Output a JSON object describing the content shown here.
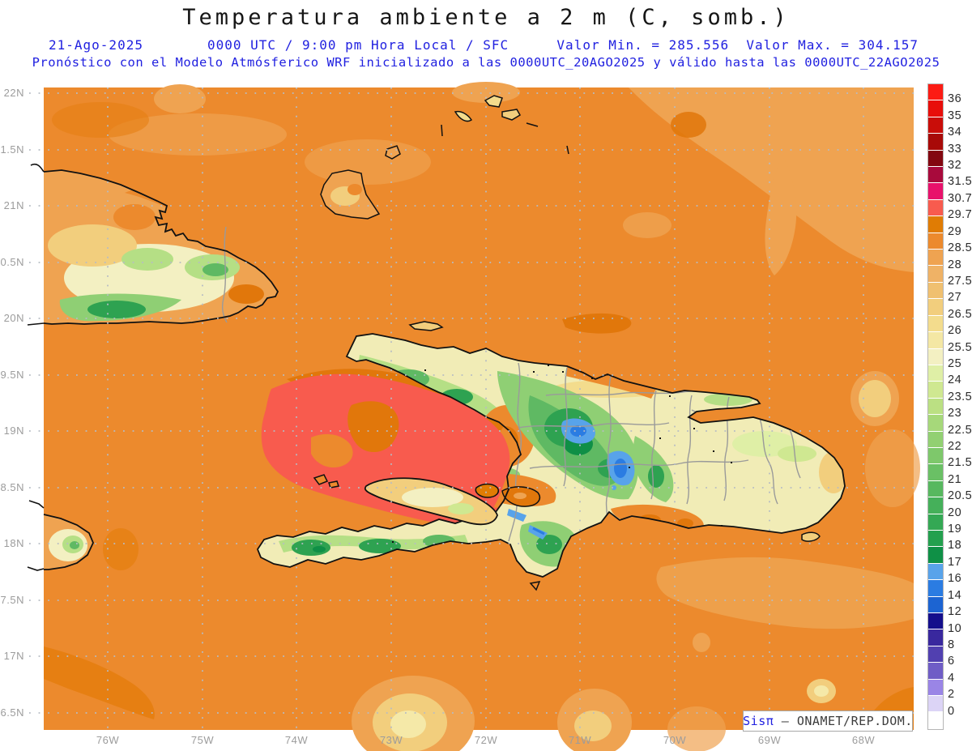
{
  "header": {
    "title": "Temperatura ambiente a 2 m (C, somb.)",
    "date": "21-Ago-2025",
    "time_line": "0000 UTC / 9:00 pm Hora Local / SFC",
    "min_label": "Valor Min. = 285.556",
    "max_label": "Valor Max. = 304.157",
    "forecast_line": "Pronóstico con el Modelo Atmósferico WRF inicializado a las 0000UTC_20AGO2025 y válido hasta las  0000UTC_22AGO2025"
  },
  "axes": {
    "lat_labels": [
      "22N",
      "1.5N",
      "21N",
      "0.5N",
      "20N",
      "9.5N",
      "19N",
      "8.5N",
      "18N",
      "7.5N",
      "17N",
      "6.5N"
    ],
    "lon_labels": [
      "76W",
      "75W",
      "74W",
      "73W",
      "72W",
      "71W",
      "70W",
      "69W",
      "68W"
    ]
  },
  "watermark": {
    "brand": "Sisπ",
    "separator": " – ",
    "text": "ONAMET/REP.DOM."
  },
  "colorbar": {
    "cells": [
      {
        "color": "#FC1B14",
        "label": "36"
      },
      {
        "color": "#E80E0A",
        "label": "35"
      },
      {
        "color": "#C90D09",
        "label": "34"
      },
      {
        "color": "#A80A08",
        "label": "33"
      },
      {
        "color": "#830710",
        "label": "32"
      },
      {
        "color": "#A80A3C",
        "label": "31.5"
      },
      {
        "color": "#E8116B",
        "label": "30.7"
      },
      {
        "color": "#F85B4E",
        "label": "29.7"
      },
      {
        "color": "#E07C04",
        "label": "29"
      },
      {
        "color": "#EC8A2D",
        "label": "28.5"
      },
      {
        "color": "#EFA351",
        "label": "28"
      },
      {
        "color": "#EFB266",
        "label": "27.5"
      },
      {
        "color": "#F0C070",
        "label": "27"
      },
      {
        "color": "#F2CE7D",
        "label": "26.5"
      },
      {
        "color": "#F3DC8D",
        "label": "26"
      },
      {
        "color": "#F4E7A4",
        "label": "25.5"
      },
      {
        "color": "#F3F0C2",
        "label": "25"
      },
      {
        "color": "#DFEFA6",
        "label": "24"
      },
      {
        "color": "#CFE891",
        "label": "23.5"
      },
      {
        "color": "#BBE083",
        "label": "23"
      },
      {
        "color": "#A6D87A",
        "label": "22.5"
      },
      {
        "color": "#92D072",
        "label": "22"
      },
      {
        "color": "#7EC86B",
        "label": "21.5"
      },
      {
        "color": "#6AC065",
        "label": "21"
      },
      {
        "color": "#57B85F",
        "label": "20.5"
      },
      {
        "color": "#45B05A",
        "label": "20"
      },
      {
        "color": "#34A854",
        "label": "19"
      },
      {
        "color": "#23A04E",
        "label": "18"
      },
      {
        "color": "#0F9046",
        "label": "17"
      },
      {
        "color": "#58A3EA",
        "label": "16"
      },
      {
        "color": "#2B7CE2",
        "label": "14"
      },
      {
        "color": "#1C64D2",
        "label": "12"
      },
      {
        "color": "#140F8C",
        "label": "10"
      },
      {
        "color": "#39289E",
        "label": "8"
      },
      {
        "color": "#5140B0",
        "label": "6"
      },
      {
        "color": "#6F5DC6",
        "label": "4"
      },
      {
        "color": "#9A85E6",
        "label": "2"
      },
      {
        "color": "#DCD4F6",
        "label": "0"
      },
      {
        "color": "#FFFFFF",
        "label": null
      }
    ],
    "units": "C"
  },
  "map_summary": {
    "type": "filled-contour temperature map",
    "variable": "2 m air temperature (C)",
    "region": "Hispaniola, eastern Cuba, Jamaica, Turks and Caicos",
    "value_min_K": 285.556,
    "value_max_K": 304.157,
    "sea_dominant_range_C": "28.5-29",
    "warm_patch_gulf_of_gonave_C": "29.7-30.7",
    "cold_spots_cordillera_central_C": "14-17"
  },
  "palette": {
    "sea_base": "#EC8A2D",
    "sea_light_tan": "#EFA351",
    "sea_dark_orange": "#E1770B",
    "sea_warm_red": "#F85B4E",
    "land_cream": "#F1ECB6",
    "land_yellow": "#F2CE7D",
    "green_light": "#B5DF85",
    "green_mid": "#8FCF74",
    "green_deep": "#2EA251",
    "green_forest": "#0F8F46",
    "cold_blue_light": "#58A3EA",
    "cold_blue": "#2B7CE2",
    "coastline": "#111111",
    "province_border": "#9A9A9A",
    "grid_dots": "#B6BCC4",
    "axis_text": "#9C9C9C",
    "header_blue": "#2121E0"
  }
}
